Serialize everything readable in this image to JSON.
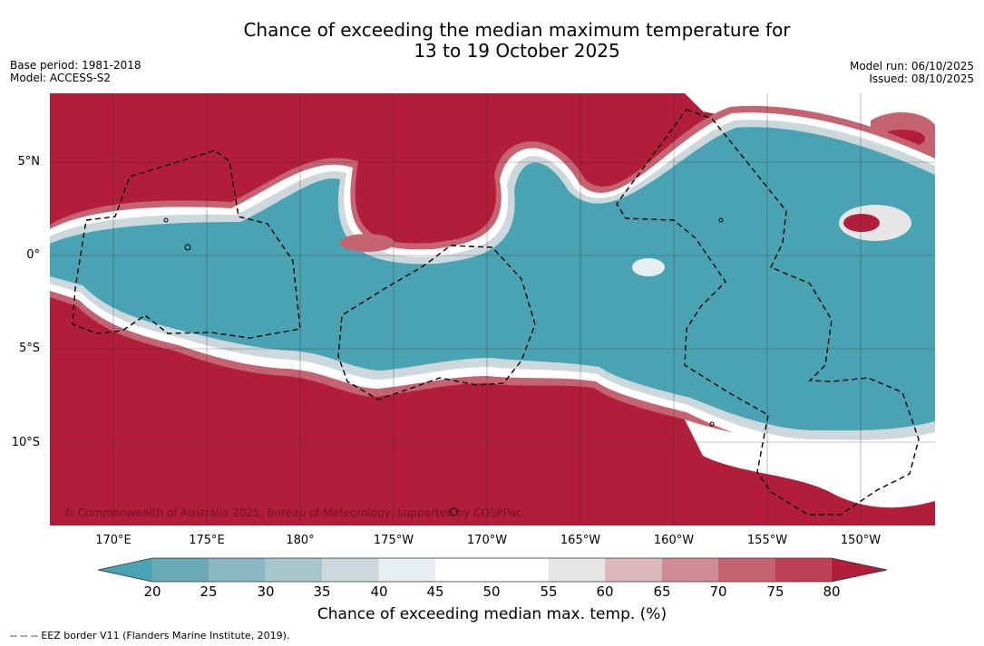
{
  "header": {
    "title_line1": "Chance of exceeding the median maximum temperature for",
    "title_line2": "13 to 19 October 2025",
    "base_period": "Base period: 1981-2018",
    "model": "Model: ACCESS-S2",
    "model_run": "Model run: 06/10/2025",
    "issued": "Issued: 08/10/2025"
  },
  "map": {
    "latitude_labels": [
      "5°N",
      "0°",
      "5°S",
      "10°S"
    ],
    "longitude_labels": [
      "170°E",
      "175°E",
      "180°",
      "175°W",
      "170°W",
      "165°W",
      "160°W",
      "155°W",
      "150°W"
    ],
    "copyright": "© Commonwealth of Australia 2025, Bureau of Meteorology, supported by COSPPac"
  },
  "colorbar": {
    "ticks": [
      "20",
      "25",
      "30",
      "35",
      "40",
      "45",
      "50",
      "55",
      "60",
      "65",
      "70",
      "75",
      "80"
    ],
    "title": "Chance of exceeding median max. temp. (%)",
    "colors": {
      "under_20": "#4aa3b3",
      "c20_25": "#69a9b6",
      "c25_30": "#88b6c2",
      "c30_35": "#a8c6cb",
      "c35_40": "#ccd8dc",
      "c40_45": "#e7eef2",
      "c45_50": "#ffffff",
      "c50_55": "#ffffff",
      "c55_60": "#e6e6e6",
      "c60_65": "#dcb7be",
      "c65_70": "#d08c96",
      "c70_75": "#c56371",
      "c75_80": "#bc4155",
      "over_80": "#b21d3a"
    }
  },
  "footer": {
    "legend_symbol": "--  --  --",
    "eez_note": "EEZ border V11 (Flanders Marine Institute, 2019)."
  }
}
